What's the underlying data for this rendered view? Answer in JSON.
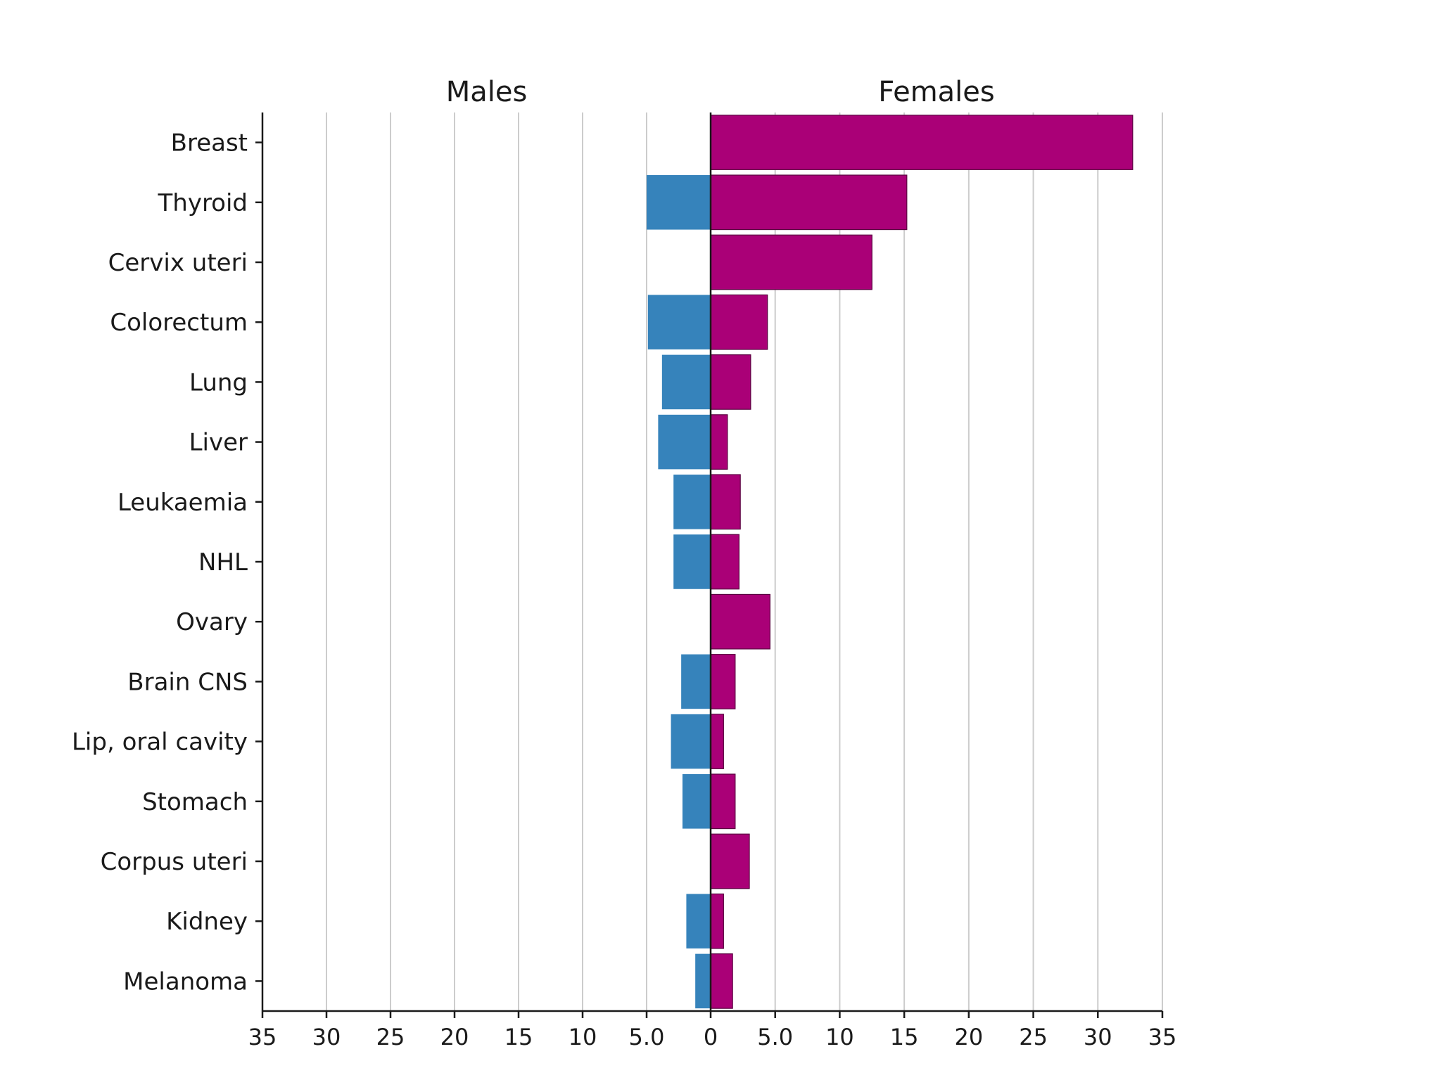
{
  "chart_data": {
    "type": "bar",
    "orientation": "horizontal-back-to-back",
    "panel_titles": {
      "left": "Males",
      "right": "Females"
    },
    "categories": [
      "Breast",
      "Thyroid",
      "Cervix uteri",
      "Colorectum",
      "Lung",
      "Liver",
      "Leukaemia",
      "NHL",
      "Ovary",
      "Brain CNS",
      "Lip, oral cavity",
      "Stomach",
      "Corpus uteri",
      "Kidney",
      "Melanoma"
    ],
    "series": [
      {
        "name": "Males",
        "color": "#3683bb",
        "values": [
          0,
          5.0,
          0,
          4.9,
          3.8,
          4.1,
          2.9,
          2.9,
          0,
          2.3,
          3.1,
          2.2,
          0,
          1.9,
          1.2
        ]
      },
      {
        "name": "Females",
        "color": "#aa0077",
        "values": [
          32.7,
          15.2,
          12.5,
          4.4,
          3.1,
          1.3,
          2.3,
          2.2,
          4.6,
          1.9,
          1.0,
          1.9,
          3.0,
          1.0,
          1.7
        ]
      }
    ],
    "xlim": [
      0,
      35
    ],
    "x_ticks": [
      0,
      5,
      10,
      15,
      20,
      25,
      30,
      35
    ],
    "x_tick_labels": [
      "0",
      "5.0",
      "10",
      "15",
      "20",
      "25",
      "30",
      "35"
    ],
    "grid": true,
    "legend": "none"
  }
}
